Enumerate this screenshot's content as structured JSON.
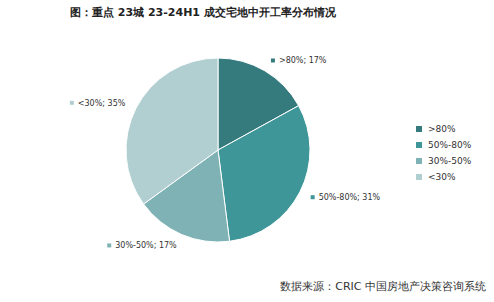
{
  "chart_data": {
    "type": "pie",
    "title": "图：重点 23城 23-24H1 成交宅地中开工率分布情况",
    "categories": [
      ">80%",
      "50%-80%",
      "30%-50%",
      "<30%"
    ],
    "values": [
      17,
      31,
      17,
      35
    ],
    "value_labels": [
      ">80%; 17%",
      "50%-80%; 31%",
      "30%-50%; 17%",
      "<30%; 35%"
    ],
    "colors": [
      "#357b7d",
      "#3e9699",
      "#7fb2b4",
      "#b1ced1"
    ],
    "data_labels": true,
    "legend": "right",
    "source": "数据来源：CRIC 中国房地产决策咨询系统"
  }
}
